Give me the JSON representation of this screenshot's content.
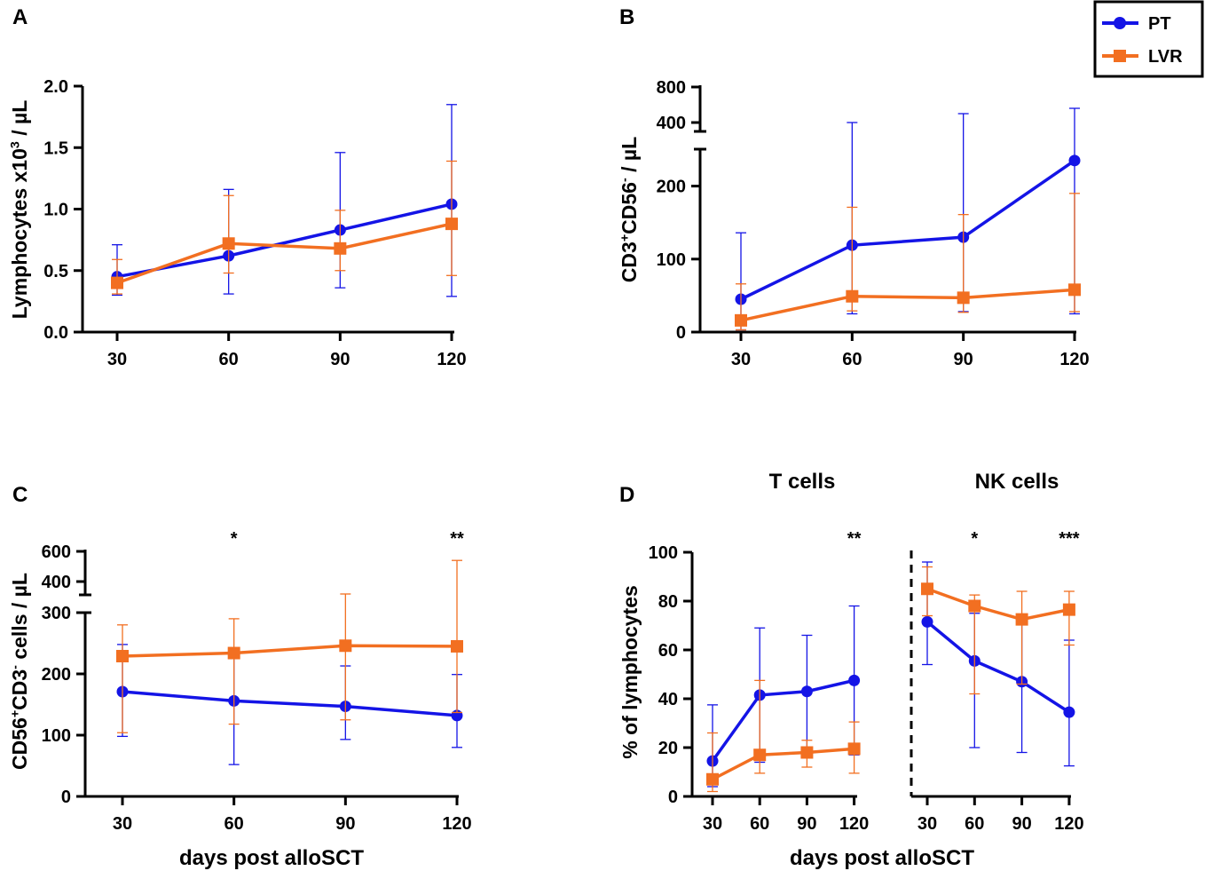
{
  "colors": {
    "pt": "#1414e6",
    "lvr": "#f26f21",
    "axis": "#000000"
  },
  "legend": {
    "entries": [
      "PT",
      "LVR"
    ],
    "position": "top-right"
  },
  "xlabel_bottom": "days post alloSCT",
  "chart_data": [
    {
      "panel": "A",
      "type": "line",
      "ylabel": "Lymphocytes x10^3 / µL",
      "x": [
        30,
        60,
        90,
        120
      ],
      "xticks": [
        "30",
        "60",
        "90",
        "120"
      ],
      "ylim": [
        0,
        2.0
      ],
      "yticks": [
        0,
        0.5,
        1.0,
        1.5,
        2.0
      ],
      "yticklabels": [
        "0.0",
        "0.5",
        "1.0",
        "1.5",
        "2.0"
      ],
      "series": [
        {
          "name": "PT",
          "values": [
            0.45,
            0.62,
            0.83,
            1.04
          ],
          "err_low": [
            0.3,
            0.31,
            0.36,
            0.29
          ],
          "err_high": [
            0.71,
            1.16,
            1.46,
            1.85
          ]
        },
        {
          "name": "LVR",
          "values": [
            0.4,
            0.72,
            0.68,
            0.88
          ],
          "err_low": [
            0.31,
            0.48,
            0.5,
            0.46
          ],
          "err_high": [
            0.59,
            1.11,
            0.99,
            1.39
          ]
        }
      ],
      "significance": []
    },
    {
      "panel": "B",
      "type": "line",
      "ylabel": "CD3+CD56- / µL",
      "x": [
        30,
        60,
        90,
        120
      ],
      "xticks": [
        "30",
        "60",
        "90",
        "120"
      ],
      "ylim": [
        0,
        800
      ],
      "broken_axis": [
        250,
        400
      ],
      "yticks": [
        0,
        100,
        200,
        400,
        800
      ],
      "yticklabels": [
        "0",
        "100",
        "200",
        "400",
        "800"
      ],
      "series": [
        {
          "name": "PT",
          "values": [
            45,
            119,
            130,
            235
          ],
          "err_low": [
            3,
            25,
            28,
            25
          ],
          "err_high": [
            136,
            400,
            500,
            560
          ]
        },
        {
          "name": "LVR",
          "values": [
            16,
            49,
            47,
            58
          ],
          "err_low": [
            3,
            29,
            27,
            28
          ],
          "err_high": [
            66,
            171,
            161,
            190
          ]
        }
      ],
      "significance": []
    },
    {
      "panel": "C",
      "type": "line",
      "ylabel": "CD56+CD3- cells / µL",
      "x": [
        30,
        60,
        90,
        120
      ],
      "xticks": [
        "30",
        "60",
        "90",
        "120"
      ],
      "ylim": [
        0,
        600
      ],
      "broken_axis": [
        300,
        400
      ],
      "yticks": [
        0,
        100,
        200,
        300,
        400,
        600
      ],
      "yticklabels": [
        "0",
        "100",
        "200",
        "300",
        "400",
        "600"
      ],
      "series": [
        {
          "name": "PT",
          "values": [
            171,
            156,
            147,
            132
          ],
          "err_low": [
            98,
            52,
            93,
            80
          ],
          "err_high": [
            248,
            225,
            213,
            199
          ]
        },
        {
          "name": "LVR",
          "values": [
            229,
            234,
            246,
            245
          ],
          "err_low": [
            104,
            118,
            125,
            137
          ],
          "err_high": [
            280,
            290,
            360,
            540
          ]
        }
      ],
      "significance": [
        {
          "x": 60,
          "label": "*"
        },
        {
          "x": 120,
          "label": "**"
        }
      ]
    },
    {
      "panel": "D",
      "type": "line",
      "ylabel": "% of lymphocytes",
      "ylim": [
        0,
        100
      ],
      "yticks": [
        0,
        20,
        40,
        60,
        80,
        100
      ],
      "yticklabels": [
        "0",
        "20",
        "40",
        "60",
        "80",
        "100"
      ],
      "subpanels": [
        {
          "title": "T cells",
          "x": [
            30,
            60,
            90,
            120
          ],
          "xticks": [
            "30",
            "60",
            "90",
            "120"
          ],
          "series": [
            {
              "name": "PT",
              "values": [
                14.5,
                41.5,
                43,
                47.5
              ],
              "err_low": [
                4,
                14,
                19,
                17
              ],
              "err_high": [
                37.5,
                69,
                66,
                78
              ]
            },
            {
              "name": "LVR",
              "values": [
                7,
                17,
                18,
                19.5
              ],
              "err_low": [
                2,
                9.5,
                12,
                9.5
              ],
              "err_high": [
                26,
                47.5,
                23,
                30.5
              ]
            }
          ],
          "significance": [
            {
              "x": 120,
              "label": "**"
            }
          ]
        },
        {
          "title": "NK cells",
          "x": [
            30,
            60,
            90,
            120
          ],
          "xticks": [
            "30",
            "60",
            "90",
            "120"
          ],
          "series": [
            {
              "name": "PT",
              "values": [
                71.5,
                55.5,
                47,
                34.5
              ],
              "err_low": [
                54,
                20,
                18,
                12.5
              ],
              "err_high": [
                96,
                75,
                74,
                64
              ]
            },
            {
              "name": "LVR",
              "values": [
                85,
                78,
                72.5,
                76.5
              ],
              "err_low": [
                74,
                42,
                46,
                62
              ],
              "err_high": [
                94,
                82.5,
                84,
                84
              ]
            }
          ],
          "significance": [
            {
              "x": 60,
              "label": "*"
            },
            {
              "x": 120,
              "label": "***"
            }
          ]
        }
      ]
    }
  ]
}
